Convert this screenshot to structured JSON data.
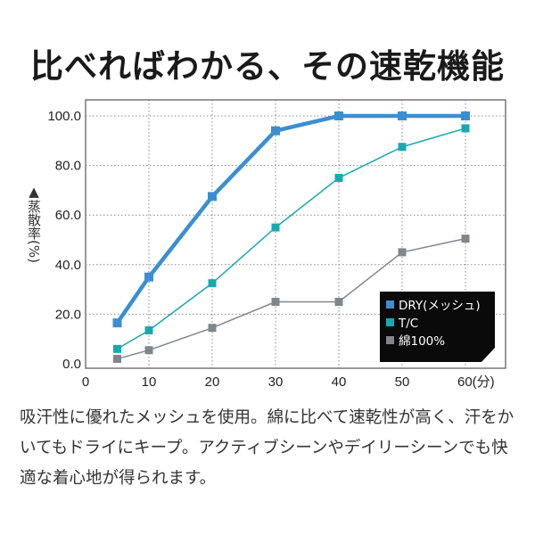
{
  "title": "比べればわかる、その速乾機能",
  "description": "吸汗性に優れたメッシュを使用。綿に比べて速乾性が高く、汗をかいてもドライにキープ。アクティブシーンやデイリーシーンでも快適な着心地が得られます。",
  "chart_data": {
    "type": "line",
    "title": "",
    "xlabel": "(分)",
    "ylabel": "▲蒸散率(%)",
    "x": [
      5,
      10,
      20,
      30,
      40,
      50,
      60
    ],
    "xticks": [
      "0",
      "10",
      "20",
      "30",
      "40",
      "50",
      "60(分)"
    ],
    "xtick_values": [
      0,
      10,
      20,
      30,
      40,
      50,
      60
    ],
    "yticks": [
      "0.0",
      "20.0",
      "40.0",
      "60.0",
      "80.0",
      "100.0"
    ],
    "ytick_values": [
      0,
      20,
      40,
      60,
      80,
      100
    ],
    "xlim": [
      0,
      66
    ],
    "ylim": [
      -2,
      106
    ],
    "grid": "dotted",
    "legend_position": "bottom-right",
    "series": [
      {
        "name": "DRY(メッシュ)",
        "color": "#3b8fd0",
        "values": [
          16.5,
          35,
          67.5,
          94,
          100,
          100,
          100
        ]
      },
      {
        "name": "T/C",
        "color": "#1aa8b0",
        "values": [
          6,
          13.5,
          32.5,
          55,
          75,
          87.5,
          95
        ]
      },
      {
        "name": "綿100%",
        "color": "#7f868c",
        "values": [
          2,
          5.5,
          14.5,
          25,
          25,
          45,
          50.5
        ]
      }
    ]
  }
}
